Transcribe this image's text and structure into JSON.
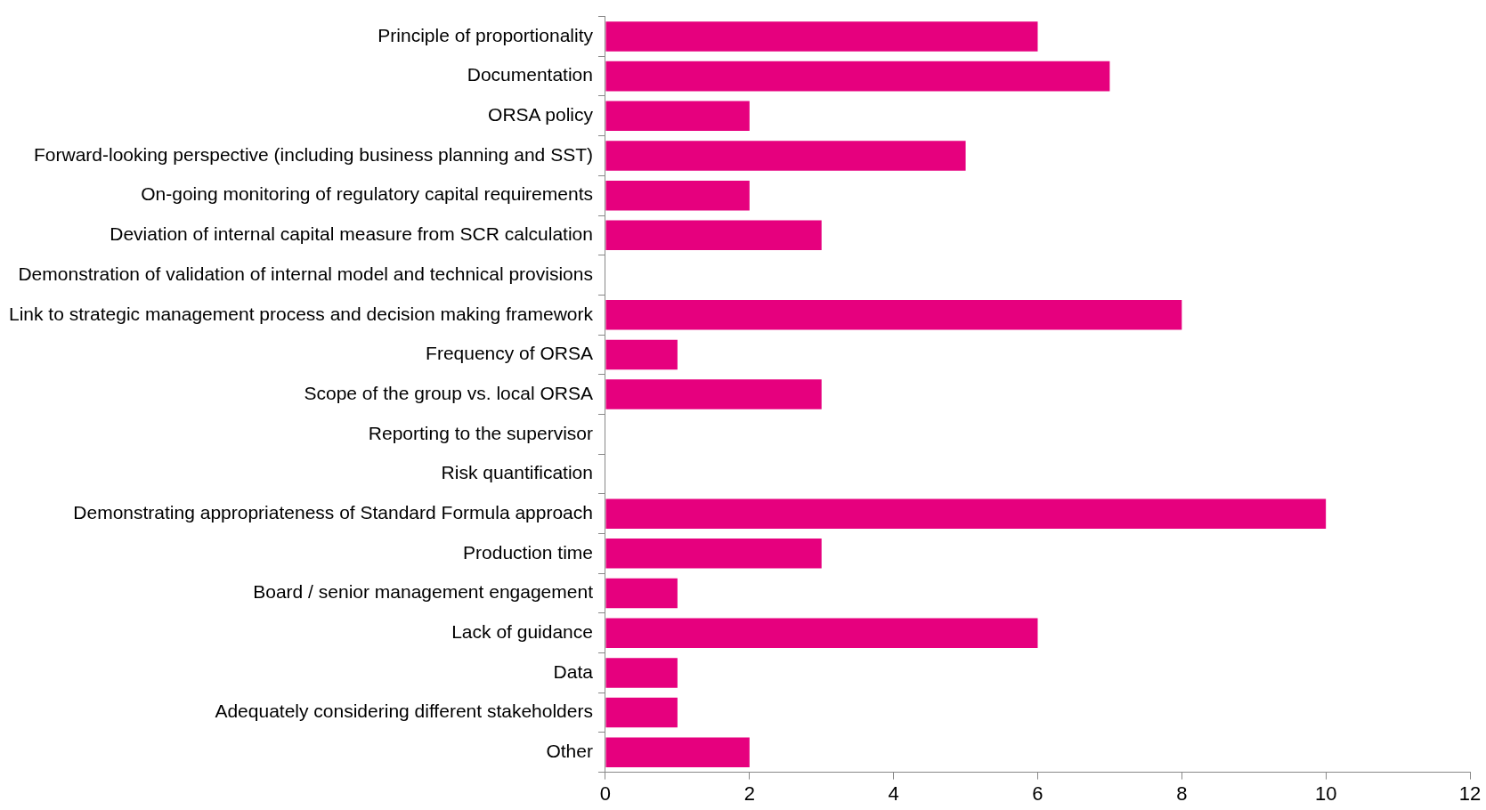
{
  "chart_data": {
    "type": "bar",
    "orientation": "horizontal",
    "categories": [
      "Principle of proportionality",
      "Documentation",
      "ORSA policy",
      "Forward-looking perspective (including business planning and SST)",
      "On-going monitoring of regulatory capital requirements",
      "Deviation of internal capital measure from SCR calculation",
      "Demonstration of validation of internal model and technical provisions",
      "Link to strategic management process and decision making framework",
      "Frequency of ORSA",
      "Scope of the group vs. local ORSA",
      "Reporting to the supervisor",
      "Risk quantification",
      "Demonstrating appropriateness of Standard Formula approach",
      "Production time",
      "Board / senior management engagement",
      "Lack of guidance",
      "Data",
      "Adequately considering different stakeholders",
      "Other"
    ],
    "values": [
      6,
      7,
      2,
      5,
      2,
      3,
      0,
      8,
      1,
      3,
      0,
      0,
      10,
      3,
      1,
      6,
      1,
      1,
      2
    ],
    "color": "#e6007e",
    "xlim": [
      0,
      12
    ],
    "xticks": [
      0,
      2,
      4,
      6,
      8,
      10,
      12
    ],
    "grid": false,
    "legend": false
  }
}
